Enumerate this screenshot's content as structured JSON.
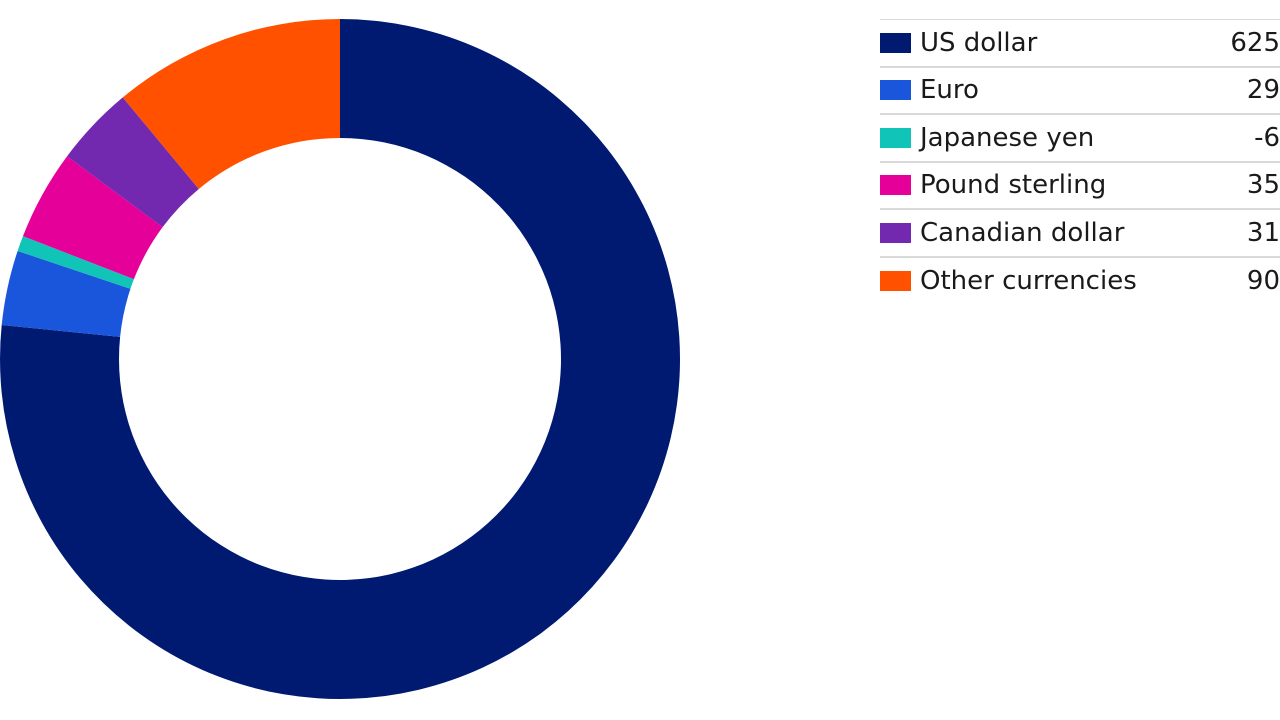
{
  "chart_data": {
    "type": "pie",
    "variant": "donut",
    "legend_position": "right",
    "grid": false,
    "slices": [
      {
        "label": "US dollar",
        "value": 625,
        "color": "#001a72"
      },
      {
        "label": "Euro",
        "value": 29,
        "color": "#1a56db"
      },
      {
        "label": "Japanese yen",
        "value": -6,
        "color": "#11c4b8"
      },
      {
        "label": "Pound sterling",
        "value": 35,
        "color": "#e6009a"
      },
      {
        "label": "Canadian dollar",
        "value": 31,
        "color": "#7229b0"
      },
      {
        "label": "Other currencies",
        "value": 90,
        "color": "#ff5100"
      }
    ]
  }
}
